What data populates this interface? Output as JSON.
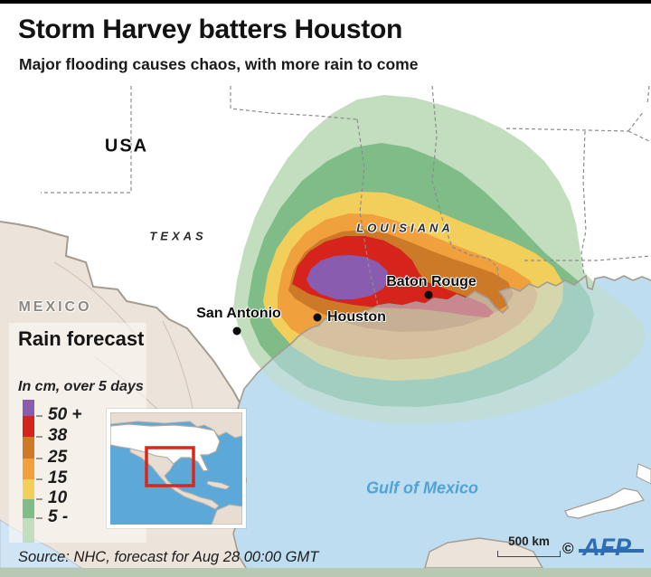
{
  "header": {
    "title": "Storm Harvey batters Houston",
    "subtitle": "Major flooding causes chaos, with more rain to come"
  },
  "map_labels": {
    "usa": "USA",
    "texas": "TEXAS",
    "louisiana": "LOUISIANA",
    "mexico": "MEXICO",
    "gulf": "Gulf of Mexico"
  },
  "cities": [
    {
      "name": "San Antonio"
    },
    {
      "name": "Houston"
    },
    {
      "name": "Baton Rouge"
    }
  ],
  "legend": {
    "title": "Rain forecast",
    "subtitle": "In cm, over 5 days",
    "unit_ticks": [
      "50 +",
      "38",
      "25",
      "15",
      "10",
      "5 -"
    ],
    "band_colors": [
      "#8a5cb0",
      "#d6231c",
      "#cc7a28",
      "#f0a03c",
      "#f2cf5b",
      "#7fbc88",
      "#c3ddbf"
    ]
  },
  "colors": {
    "purple": "#8a5cb0",
    "red": "#d6231c",
    "dark_orange": "#cc7a28",
    "orange": "#f0a03c",
    "yellow": "#f2cf5b",
    "green": "#7fbc88",
    "light_green": "#c3ddbf",
    "ocean": "#bfddf0",
    "pacific": "#cfe4f4",
    "land": "#ffffff",
    "mexico_land": "#ece3da",
    "inset_ocean": "#5ca8d8",
    "inset_land": "#e7ddd2",
    "highlight_red": "#d8281c",
    "afp_blue": "#2e6cb5"
  },
  "footer": {
    "source": "Source: NHC, forecast for Aug 28 00:00 GMT",
    "scale_label": "500 km",
    "copyright": "©",
    "credit": "AFP"
  }
}
